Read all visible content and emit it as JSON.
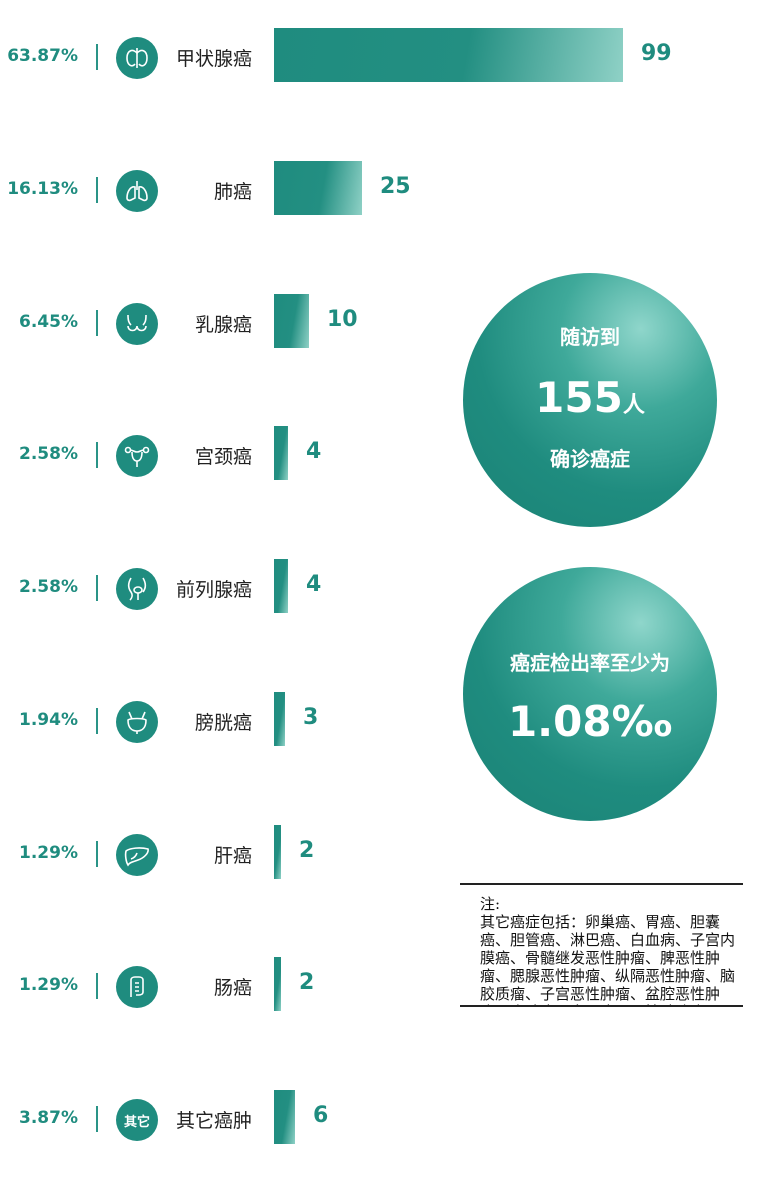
{
  "chart_data": {
    "type": "bar",
    "orientation": "horizontal",
    "categories": [
      "甲状腺癌",
      "肺癌",
      "乳腺癌",
      "宫颈癌",
      "前列腺癌",
      "膀胱癌",
      "肝癌",
      "肠癌",
      "其它癌肿"
    ],
    "values": [
      99,
      25,
      10,
      4,
      4,
      3,
      2,
      2,
      6
    ],
    "percentages": [
      "63.87%",
      "16.13%",
      "6.45%",
      "2.58%",
      "2.58%",
      "1.94%",
      "1.29%",
      "1.29%",
      "3.87%"
    ],
    "icons": [
      "thyroid-icon",
      "lungs-icon",
      "breast-icon",
      "uterus-icon",
      "prostate-icon",
      "bladder-icon",
      "liver-icon",
      "intestine-icon",
      "other-text-icon"
    ],
    "other_icon_text": "其它",
    "bar_color": "#1f8c7f",
    "accent_light": "#8fd1c6",
    "xlim": [
      0,
      99
    ]
  },
  "summary": {
    "followed_label": "随访到",
    "followed_count": "155",
    "followed_unit": "人",
    "diagnosed_label": "确诊癌症",
    "rate_label": "癌症检出率至少为",
    "rate_value": "1.08‰"
  },
  "note": {
    "title": "注:",
    "text": "其它癌症包括：卵巢癌、胃癌、胆囊癌、胆管癌、淋巴癌、白血病、子宫内膜癌、骨髓继发恶性肿瘤、脾恶性肿瘤、腮腺恶性肿瘤、纵隔恶性肿瘤、脑胶质瘤、子宫恶性肿瘤、盆腔恶性肿瘤、胸腺癌、鼻咽癌、恶性畸胎瘤、骨癌、肾上腺癌、腹膜后恶性肿瘤、皮肤癌、胸腔恶性肿瘤等。"
  }
}
